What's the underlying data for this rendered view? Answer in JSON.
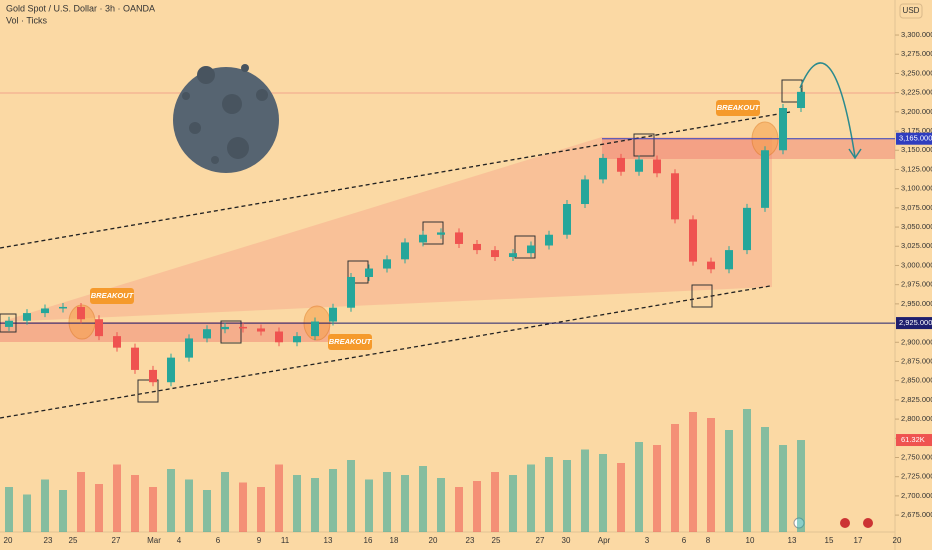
{
  "chart_data": {
    "type": "candlestick",
    "title": "Gold Spot / U.S. Dollar · 3h · OANDA",
    "subtitle": "Vol · Ticks",
    "currency": "USD",
    "up_color": "#26a69a",
    "down_color": "#ef5350",
    "ylim": [
      2653,
      3345.6
    ],
    "yticks": [
      {
        "value": 2675,
        "label": "2,675.000"
      },
      {
        "value": 2700,
        "label": "2,700.000"
      },
      {
        "value": 2725,
        "label": "2,725.000"
      },
      {
        "value": 2750,
        "label": "2,750.000"
      },
      {
        "value": 2775,
        "label": "2,775.000"
      },
      {
        "value": 2800,
        "label": "2,800.000"
      },
      {
        "value": 2825,
        "label": "2,825.000"
      },
      {
        "value": 2850,
        "label": "2,850.000"
      },
      {
        "value": 2875,
        "label": "2,875.000"
      },
      {
        "value": 2900,
        "label": "2,900.000"
      },
      {
        "value": 2950,
        "label": "2,950.000"
      },
      {
        "value": 2975,
        "label": "2,975.000"
      },
      {
        "value": 3000,
        "label": "3,000.000"
      },
      {
        "value": 3025,
        "label": "3,025.000"
      },
      {
        "value": 3050,
        "label": "3,050.000"
      },
      {
        "value": 3075,
        "label": "3,075.000"
      },
      {
        "value": 3100,
        "label": "3,100.000"
      },
      {
        "value": 3125,
        "label": "3,125.000"
      },
      {
        "value": 3150,
        "label": "3,150.000"
      },
      {
        "value": 3175,
        "label": "3,175.000"
      },
      {
        "value": 3200,
        "label": "3,200.000"
      },
      {
        "value": 3225,
        "label": "3,225.000"
      },
      {
        "value": 3250,
        "label": "3,250.000"
      },
      {
        "value": 3275,
        "label": "3,275.000"
      },
      {
        "value": 3300,
        "label": "3,300.000"
      }
    ],
    "price_labels": [
      {
        "value": 3165,
        "label": "3,165.000"
      },
      {
        "value": 2925,
        "label": "2,925.000"
      }
    ],
    "x_labels": [
      "20",
      "23",
      "25",
      "27",
      "Mar",
      "4",
      "6",
      "9",
      "11",
      "13",
      "16",
      "18",
      "20",
      "23",
      "25",
      "27",
      "30",
      "Apr",
      "3",
      "6",
      "8",
      "10",
      "13",
      "15",
      "17",
      "20"
    ],
    "open": [
      2920,
      2928,
      2938,
      2944,
      2946,
      2930,
      2908,
      2893,
      2864,
      2848,
      2880,
      2905,
      2917,
      2920,
      2918,
      2914,
      2900,
      2908,
      2927,
      2945,
      2985,
      2996,
      3008,
      3030,
      3040,
      3043,
      3028,
      3020,
      3011,
      3016,
      3026,
      3040,
      3080,
      3112,
      3140,
      3122,
      3138,
      3120,
      3060,
      3005,
      2995,
      3020,
      3075,
      3150,
      3205
    ],
    "close": [
      2928,
      2938,
      2944,
      2946,
      2930,
      2908,
      2893,
      2864,
      2848,
      2880,
      2905,
      2917,
      2920,
      2918,
      2914,
      2900,
      2908,
      2927,
      2945,
      2985,
      2996,
      3008,
      3030,
      3040,
      3043,
      3028,
      3020,
      3011,
      3016,
      3026,
      3040,
      3080,
      3112,
      3140,
      3122,
      3138,
      3120,
      3060,
      3005,
      2995,
      3020,
      3075,
      3150,
      3205,
      3226
    ],
    "volume": [
      30,
      25,
      35,
      28,
      40,
      32,
      45,
      38,
      30,
      42,
      35,
      28,
      40,
      33,
      30,
      45,
      38,
      36,
      42,
      48,
      35,
      40,
      38,
      44,
      36,
      30,
      34,
      40,
      38,
      45,
      50,
      48,
      55,
      52,
      46,
      60,
      58,
      72,
      80,
      76,
      68,
      82,
      70,
      58,
      61.32
    ],
    "volume_label": "61.32K",
    "annotations": [
      "BREAKOUT",
      "BREAKOUT",
      "BREAKOUT"
    ]
  }
}
